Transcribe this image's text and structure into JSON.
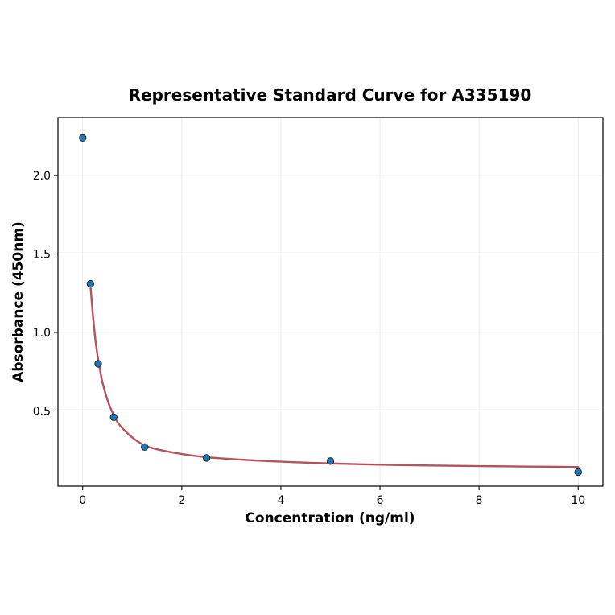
{
  "chart_data": {
    "type": "scatter",
    "title": "Representative Standard Curve for A335190",
    "xlabel": "Concentration (ng/ml)",
    "ylabel": "Absorbance (450nm)",
    "xlim": [
      -0.5,
      10.5
    ],
    "ylim": [
      0.02,
      2.37
    ],
    "xticks": [
      0,
      2,
      4,
      6,
      8,
      10
    ],
    "yticks": [
      0.5,
      1.0,
      1.5,
      2.0
    ],
    "xtick_labels": [
      "0",
      "2",
      "4",
      "6",
      "8",
      "10"
    ],
    "ytick_labels": [
      "0.5",
      "1.0",
      "1.5",
      "2.0"
    ],
    "grid": true,
    "series": [
      {
        "kind": "points",
        "x": [
          0,
          0.156,
          0.312,
          0.625,
          1.25,
          2.5,
          5,
          10
        ],
        "y": [
          2.24,
          1.31,
          0.8,
          0.46,
          0.27,
          0.2,
          0.18,
          0.11
        ],
        "color": "#1f77b4"
      },
      {
        "kind": "fit-curve",
        "x": [
          0.156,
          0.2,
          0.25,
          0.3,
          0.35,
          0.4,
          0.5,
          0.6,
          0.7,
          0.8,
          1.0,
          1.25,
          1.5,
          2.0,
          2.5,
          3.0,
          4.0,
          5.0,
          6.0,
          7.0,
          8.0,
          9.0,
          10.0
        ],
        "y": [
          1.3,
          1.13,
          0.97,
          0.85,
          0.76,
          0.68,
          0.57,
          0.49,
          0.43,
          0.39,
          0.33,
          0.28,
          0.255,
          0.225,
          0.205,
          0.193,
          0.176,
          0.165,
          0.157,
          0.152,
          0.148,
          0.145,
          0.142
        ],
        "color": "#b5525c"
      }
    ]
  }
}
